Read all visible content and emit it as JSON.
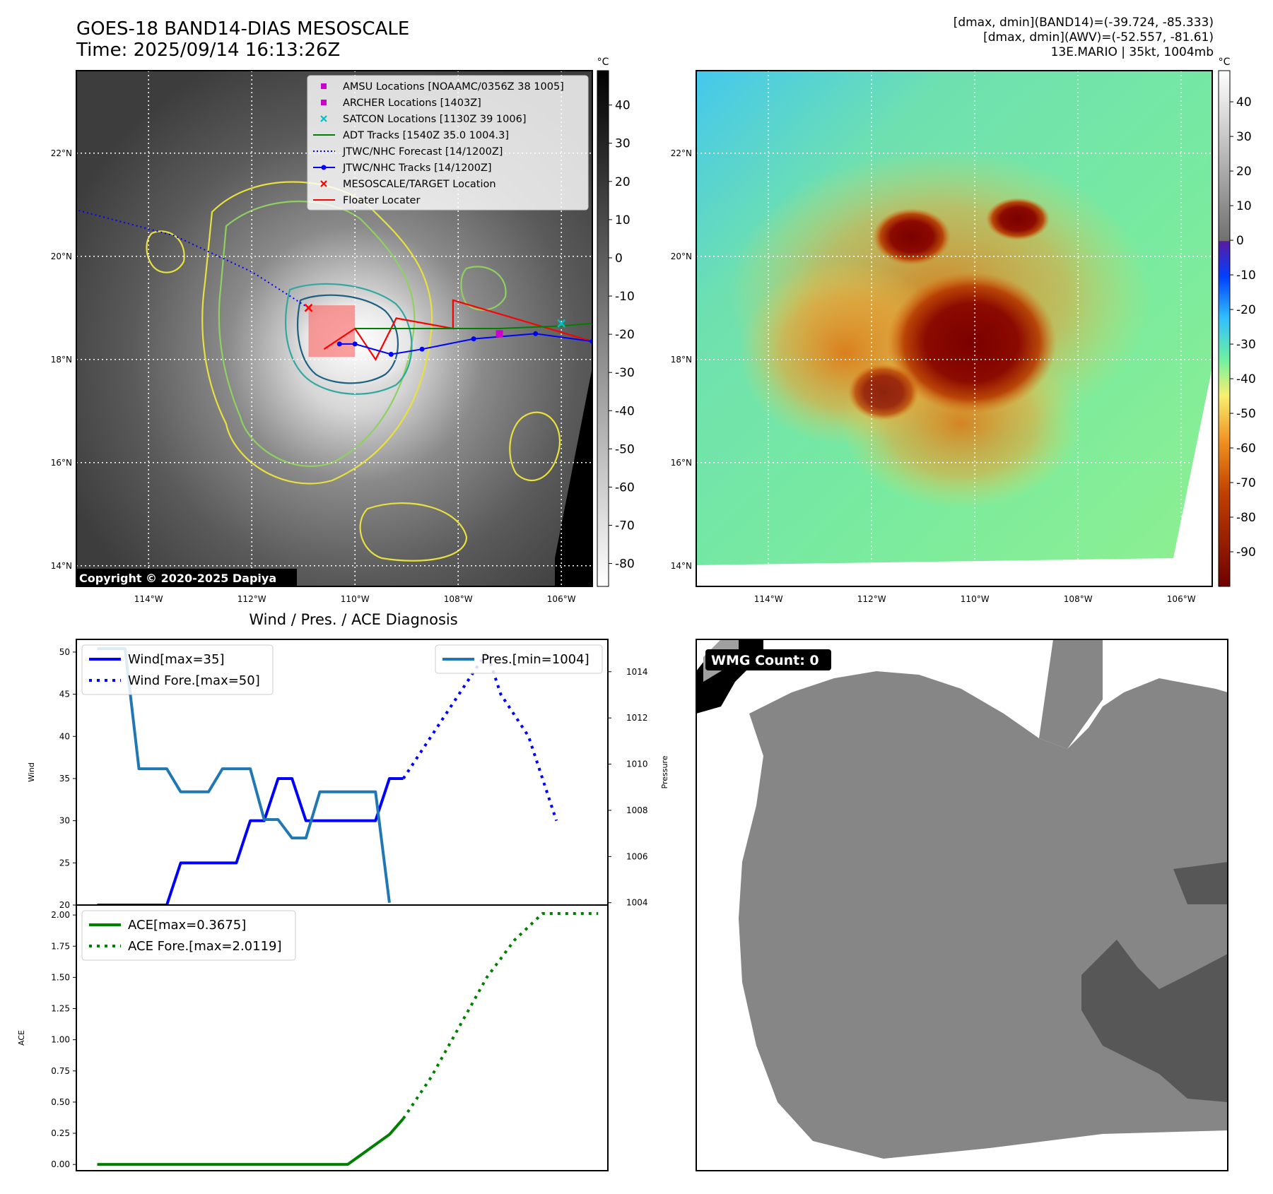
{
  "header": {
    "title_line1": "GOES-18 BAND14-DIAS MESOSCALE",
    "title_line2": "Time: 2025/09/14 16:13:26Z",
    "info_line1": "[dmax, dmin](BAND14)=(-39.724, -85.333)",
    "info_line2": "[dmax, dmin](AWV)=(-52.557, -81.61)",
    "info_line3": "13E.MARIO | 35kt, 1004mb"
  },
  "maps": {
    "lat_labels": [
      "22°N",
      "20°N",
      "18°N",
      "16°N",
      "14°N"
    ],
    "lat_values": [
      22,
      20,
      18,
      16,
      14
    ],
    "lon_labels": [
      "114°W",
      "112°W",
      "110°W",
      "108°W",
      "106°W"
    ],
    "lon_values": [
      -114,
      -112,
      -110,
      -108,
      -106
    ],
    "lon_range": [
      -115.4,
      -105.4
    ],
    "lat_range": [
      13.6,
      23.6
    ],
    "copyright": "Copyright © 2020-2025 Dapiya",
    "colorbar_unit": "°C",
    "gray_colorbar_ticks": [
      40,
      30,
      20,
      10,
      0,
      -10,
      -20,
      -30,
      -40,
      -50,
      -60,
      -70,
      -80
    ],
    "gray_colorbar_range": [
      49,
      -86
    ],
    "color_colorbar_ticks": [
      40,
      30,
      20,
      10,
      0,
      -10,
      -20,
      -30,
      -40,
      -50,
      -60,
      -70,
      -80,
      -90
    ],
    "color_colorbar_range": [
      49,
      -100
    ],
    "legend": [
      {
        "label": "AMSU Locations [NOAAMC/0356Z 38 1005]",
        "kind": "square",
        "color": "#cc00cc"
      },
      {
        "label": "ARCHER Locations [1403Z]",
        "kind": "square",
        "color": "#cc00cc"
      },
      {
        "label": "SATCON Locations [1130Z 39 1006]",
        "kind": "x",
        "color": "#00c0c0"
      },
      {
        "label": "ADT Tracks [1540Z 35.0 1004.3]",
        "kind": "line",
        "color": "#008000"
      },
      {
        "label": "JTWC/NHC Forecast [14/1200Z]",
        "kind": "dotted",
        "color": "#0000ff"
      },
      {
        "label": "JTWC/NHC Tracks [14/1200Z]",
        "kind": "linedot",
        "color": "#0000ff"
      },
      {
        "label": "MESOSCALE/TARGET Location",
        "kind": "x",
        "color": "#ff0000"
      },
      {
        "label": "Floater Locater",
        "kind": "line",
        "color": "#ff0000"
      }
    ],
    "jtwc_track": [
      [
        -105.4,
        18.35
      ],
      [
        -106.5,
        18.5
      ],
      [
        -107.7,
        18.4
      ],
      [
        -108.7,
        18.2
      ],
      [
        -109.3,
        18.1
      ],
      [
        -110.0,
        18.3
      ],
      [
        -110.3,
        18.3
      ]
    ],
    "jtwc_forecast": [
      [
        -110.9,
        19.0
      ],
      [
        -112.0,
        19.7
      ],
      [
        -113.5,
        20.4
      ],
      [
        -115.4,
        20.9
      ]
    ],
    "adt_track": [
      [
        -110.0,
        18.6
      ],
      [
        -108.5,
        18.6
      ],
      [
        -107.2,
        18.6
      ],
      [
        -106.0,
        18.65
      ],
      [
        -105.4,
        18.7
      ]
    ],
    "amsu_position": [
      -107.2,
      18.5
    ],
    "satcon_position": [
      -106.0,
      18.7
    ],
    "target_position": [
      -110.9,
      19.0
    ],
    "floater_box": [
      [
        -110.9,
        18.05
      ],
      [
        -110.0,
        19.05
      ]
    ]
  },
  "chart_data": [
    {
      "type": "line",
      "title": "Wind / Pres. / ACE Diagnosis",
      "ylabel": "Wind",
      "ylim": [
        20,
        51.5
      ],
      "yticks": [
        50,
        45,
        40,
        35,
        30,
        25,
        20
      ],
      "y2label": "Pressure",
      "y2lim": [
        1003.9,
        1015.4
      ],
      "y2ticks": [
        1014,
        1012,
        1010,
        1008,
        1006,
        1004
      ],
      "x": [
        0,
        1,
        2,
        3,
        4,
        5,
        6,
        7,
        8,
        9,
        10,
        11,
        12,
        13,
        14,
        15,
        16,
        17,
        18,
        19,
        20,
        21,
        22,
        23,
        24,
        25,
        26,
        27,
        28,
        29,
        30,
        31,
        32,
        33,
        34,
        35
      ],
      "xlim": [
        -1.5,
        36.7
      ],
      "series": [
        {
          "name": "Wind[max=35]",
          "color": "#0000ff",
          "style": "solid",
          "x": [
            0,
            5,
            6,
            10,
            11,
            12,
            13,
            14,
            15,
            16,
            17,
            19,
            20,
            21,
            22
          ],
          "values": [
            20,
            20,
            25,
            25,
            30,
            30,
            35,
            35,
            30,
            30,
            30,
            30,
            30,
            35,
            35
          ]
        },
        {
          "name": "Wind Fore.[max=50]",
          "color": "#0000ff",
          "style": "dotted",
          "x": [
            22,
            24,
            26,
            28,
            29,
            31,
            32,
            33
          ],
          "values": [
            35,
            40,
            45,
            50,
            45,
            40,
            35,
            30
          ]
        },
        {
          "name": "Pres.[min=1004]",
          "color": "#1f77b4",
          "style": "solid",
          "axis": "right",
          "x": [
            0,
            2,
            3,
            5,
            6,
            8,
            9,
            11,
            12,
            13,
            14,
            15,
            16,
            17,
            18,
            19,
            20,
            21
          ],
          "values": [
            1015,
            1015,
            1009.8,
            1009.8,
            1008.8,
            1008.8,
            1009.8,
            1009.8,
            1007.6,
            1007.6,
            1006.8,
            1006.8,
            1008.8,
            1008.8,
            1008.8,
            1008.8,
            1008.8,
            1004
          ]
        }
      ]
    },
    {
      "type": "line",
      "ylabel": "ACE",
      "ylim": [
        -0.05,
        2.08
      ],
      "yticks": [
        2.0,
        1.75,
        1.5,
        1.25,
        1.0,
        0.75,
        0.5,
        0.25,
        0.0
      ],
      "xlim": [
        -1.5,
        36.7
      ],
      "series": [
        {
          "name": "ACE[max=0.3675]",
          "color": "#008000",
          "style": "solid",
          "x": [
            0,
            6,
            9,
            12,
            15,
            18,
            21,
            22
          ],
          "values": [
            0.0,
            0.0,
            0.0,
            0.0,
            0.0,
            0.0,
            0.24,
            0.3675
          ]
        },
        {
          "name": "ACE Fore.[max=2.0119]",
          "color": "#008000",
          "style": "dotted",
          "x": [
            22,
            24,
            26,
            28,
            30,
            32,
            34,
            36
          ],
          "values": [
            0.3675,
            0.7,
            1.1,
            1.5,
            1.8,
            2.0119,
            2.0119,
            2.0119
          ]
        }
      ]
    }
  ],
  "wmg": {
    "label": "WMG Count: 0"
  }
}
